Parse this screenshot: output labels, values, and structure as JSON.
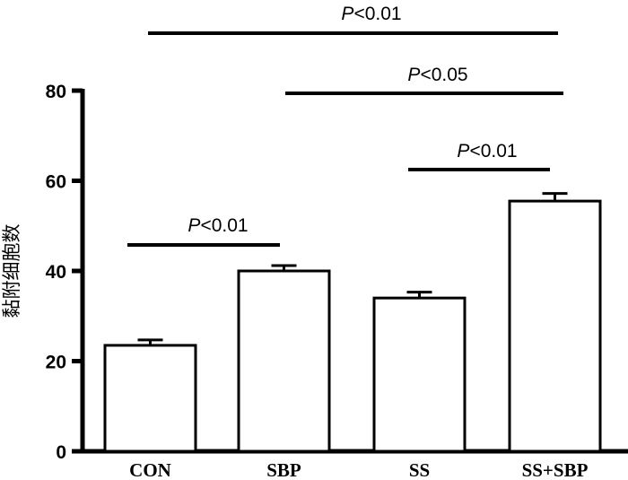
{
  "chart_data": {
    "type": "bar",
    "categories": [
      "CON",
      "SBP",
      "SS",
      "SS+SBP"
    ],
    "values": [
      23.5,
      40,
      34,
      55.5
    ],
    "errors": [
      1.2,
      1.2,
      1.3,
      1.7
    ],
    "ylabel": "黏附细胞数",
    "xlabel": "",
    "ylim": [
      0,
      80
    ],
    "yticks": [
      "0",
      "20",
      "40",
      "60",
      "80"
    ],
    "grid": false,
    "colors": {
      "bar_fill": "#ffffff",
      "bar_stroke": "#000000"
    },
    "annotations": [
      {
        "from": "CON",
        "to": "SBP",
        "p_symbol": "P",
        "p_text": "<0.01"
      },
      {
        "from": "SS",
        "to": "SS+SBP",
        "p_symbol": "P",
        "p_text": "<0.01"
      },
      {
        "from": "SBP",
        "to": "SS+SBP",
        "p_symbol": "P",
        "p_text": "<0.05"
      },
      {
        "from": "CON",
        "to": "SS+SBP",
        "p_symbol": "P",
        "p_text": "<0.01"
      }
    ]
  }
}
